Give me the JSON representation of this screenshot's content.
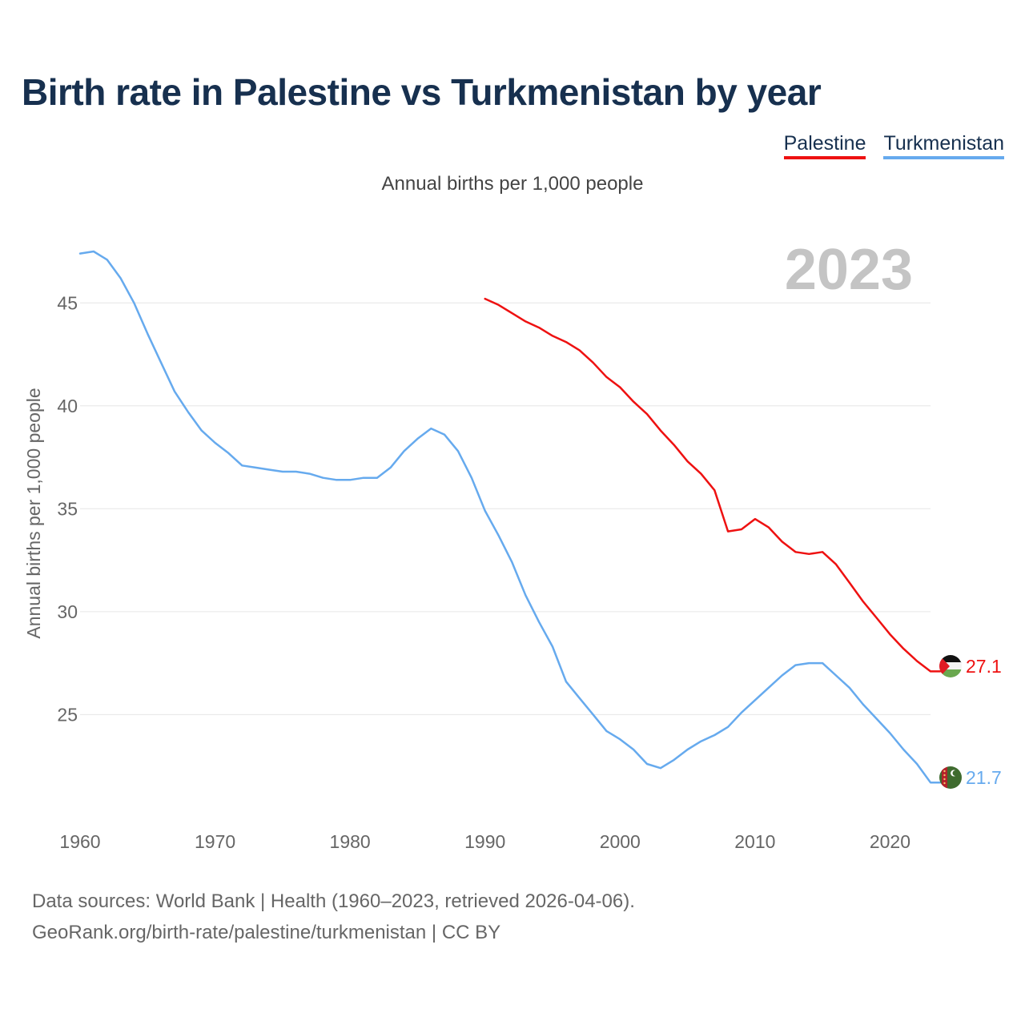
{
  "title": "Birth rate in Palestine vs Turkmenistan by year",
  "subtitle": "Annual births per 1,000 people",
  "year_badge": "2023",
  "legend": [
    {
      "label": "Palestine",
      "color": "#ee1111"
    },
    {
      "label": "Turkmenistan",
      "color": "#66aaee"
    }
  ],
  "sources": {
    "line1": "Data sources: World Bank | Health (1960–2023, retrieved 2026-04-06).",
    "line2": "GeoRank.org/birth-rate/palestine/turkmenistan | CC BY"
  },
  "chart_data": {
    "type": "line",
    "title": "Birth rate in Palestine vs Turkmenistan by year",
    "ylabel": "Annual births per 1,000 people",
    "xlabel": "",
    "xlim": [
      1960,
      2023
    ],
    "ylim": [
      20.5,
      47.5
    ],
    "xticks": [
      1960,
      1970,
      1980,
      1990,
      2000,
      2010,
      2020
    ],
    "yticks": [
      25,
      30,
      35,
      40,
      45
    ],
    "grid": true,
    "series": [
      {
        "name": "Palestine",
        "color": "#ee1111",
        "flag": "palestine-flag",
        "end_label": "27.1",
        "x": [
          1990,
          1991,
          1992,
          1993,
          1994,
          1995,
          1996,
          1997,
          1998,
          1999,
          2000,
          2001,
          2002,
          2003,
          2004,
          2005,
          2006,
          2007,
          2008,
          2009,
          2010,
          2011,
          2012,
          2013,
          2014,
          2015,
          2016,
          2017,
          2018,
          2019,
          2020,
          2021,
          2022,
          2023
        ],
        "values": [
          45.2,
          44.9,
          44.5,
          44.1,
          43.8,
          43.4,
          43.1,
          42.7,
          42.1,
          41.4,
          40.9,
          40.2,
          39.6,
          38.8,
          38.1,
          37.3,
          36.7,
          35.9,
          33.9,
          34.0,
          34.5,
          34.1,
          33.4,
          32.9,
          32.8,
          32.9,
          32.3,
          31.4,
          30.5,
          29.7,
          28.9,
          28.2,
          27.6,
          27.1
        ]
      },
      {
        "name": "Turkmenistan",
        "color": "#66aaee",
        "flag": "turkmenistan-flag",
        "end_label": "21.7",
        "x": [
          1960,
          1961,
          1962,
          1963,
          1964,
          1965,
          1966,
          1967,
          1968,
          1969,
          1970,
          1971,
          1972,
          1973,
          1974,
          1975,
          1976,
          1977,
          1978,
          1979,
          1980,
          1981,
          1982,
          1983,
          1984,
          1985,
          1986,
          1987,
          1988,
          1989,
          1990,
          1991,
          1992,
          1993,
          1994,
          1995,
          1996,
          1997,
          1998,
          1999,
          2000,
          2001,
          2002,
          2003,
          2004,
          2005,
          2006,
          2007,
          2008,
          2009,
          2010,
          2011,
          2012,
          2013,
          2014,
          2015,
          2016,
          2017,
          2018,
          2019,
          2020,
          2021,
          2022,
          2023
        ],
        "values": [
          47.4,
          47.5,
          47.1,
          46.2,
          45.0,
          43.5,
          42.1,
          40.7,
          39.7,
          38.8,
          38.2,
          37.7,
          37.1,
          37.0,
          36.9,
          36.8,
          36.8,
          36.7,
          36.5,
          36.4,
          36.4,
          36.5,
          36.5,
          37.0,
          37.8,
          38.4,
          38.9,
          38.6,
          37.8,
          36.5,
          34.9,
          33.7,
          32.4,
          30.8,
          29.5,
          28.3,
          26.6,
          25.8,
          25.0,
          24.2,
          23.8,
          23.3,
          22.6,
          22.4,
          22.8,
          23.3,
          23.7,
          24.0,
          24.4,
          25.1,
          25.7,
          26.3,
          26.9,
          27.4,
          27.5,
          27.5,
          26.9,
          26.3,
          25.5,
          24.8,
          24.1,
          23.3,
          22.6,
          21.7
        ]
      }
    ]
  }
}
